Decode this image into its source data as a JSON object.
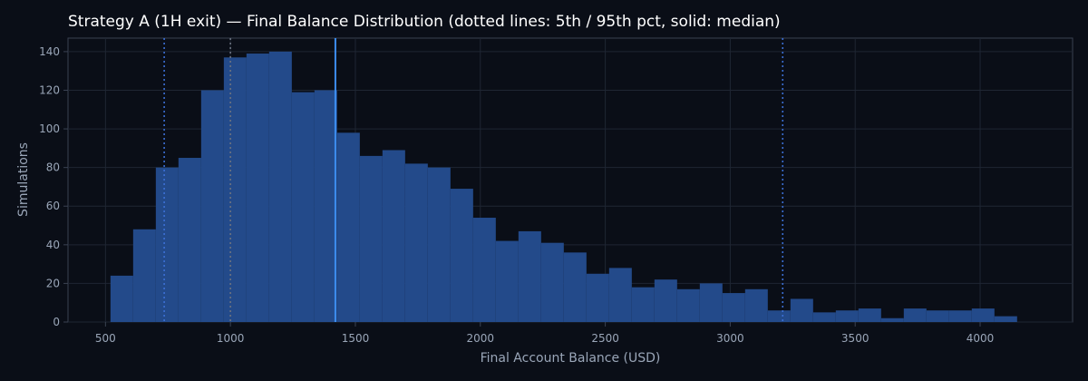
{
  "chart_data": {
    "type": "bar",
    "title": "Strategy A (1H exit) — Final Balance Distribution (dotted lines: 5th / 95th pct, solid: median)",
    "xlabel": "Final Account Balance (USD)",
    "ylabel": "Simulations",
    "xlim": [
      350,
      4370
    ],
    "ylim": [
      0,
      147
    ],
    "x_ticks": [
      500,
      1000,
      1500,
      2000,
      2500,
      3000,
      3500,
      4000
    ],
    "y_ticks": [
      0,
      20,
      40,
      60,
      80,
      100,
      120,
      140
    ],
    "grid": true,
    "bin_start": 520,
    "bin_width": 90.7,
    "counts": [
      24,
      48,
      80,
      85,
      120,
      137,
      139,
      140,
      119,
      120,
      98,
      86,
      89,
      82,
      80,
      69,
      54,
      42,
      47,
      41,
      36,
      25,
      28,
      18,
      22,
      17,
      20,
      15,
      17,
      6,
      12,
      5,
      6,
      7,
      2,
      7,
      6,
      6,
      7,
      3
    ],
    "reference_lines": [
      {
        "kind": "5th percentile",
        "x": 735,
        "style": "dotted",
        "color": "#3b6fd4"
      },
      {
        "kind": "95th percentile",
        "x": 3210,
        "style": "dotted",
        "color": "#3b6fd4"
      },
      {
        "kind": "median",
        "x": 1420,
        "style": "solid",
        "color": "#3d8ef0"
      },
      {
        "kind": "reference",
        "x": 1000,
        "style": "dotted",
        "color": "#6b7280"
      }
    ],
    "colors": {
      "background": "#0a0e17",
      "bar": "#234a8a",
      "grid": "#1f2633",
      "axis": "#3a4252",
      "text": "#9aa6b8",
      "title": "#ffffff"
    }
  }
}
